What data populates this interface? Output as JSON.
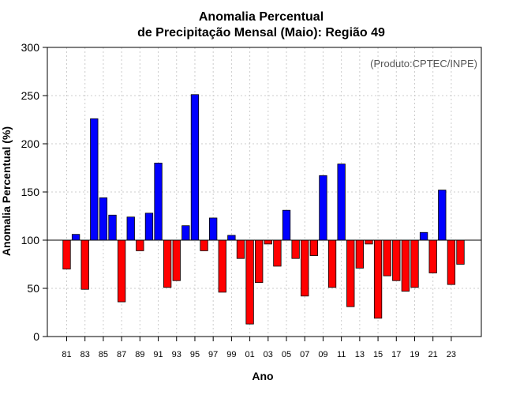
{
  "chart_data": {
    "type": "bar",
    "title_line1": "Anomalia Percentual",
    "title_line2": "de Precipitação Mensal (Maio): Região 49",
    "ylabel": "Anomalia Percentual (%)",
    "xlabel": "Ano",
    "credit": "(Produto:CPTEC/INPE)",
    "ylim": [
      0,
      300
    ],
    "yticks": [
      0,
      50,
      100,
      150,
      200,
      250,
      300
    ],
    "baseline": 100,
    "grid": true,
    "colors": {
      "above": "#0000ff",
      "below": "#ff0000",
      "border": "#000000",
      "grid": "#cccccc"
    },
    "categories": [
      "81",
      "82",
      "83",
      "84",
      "85",
      "86",
      "87",
      "88",
      "89",
      "90",
      "91",
      "92",
      "93",
      "94",
      "95",
      "96",
      "97",
      "98",
      "99",
      "00",
      "01",
      "02",
      "03",
      "04",
      "05",
      "06",
      "07",
      "08",
      "09",
      "10",
      "11",
      "12",
      "13",
      "14",
      "15",
      "16",
      "17",
      "18",
      "19",
      "20",
      "21",
      "22",
      "23",
      "24"
    ],
    "tick_labels": [
      "81",
      "83",
      "85",
      "87",
      "89",
      "91",
      "93",
      "95",
      "97",
      "99",
      "01",
      "03",
      "05",
      "07",
      "09",
      "11",
      "13",
      "15",
      "17",
      "19",
      "21",
      "23"
    ],
    "values": [
      70,
      106,
      49,
      226,
      144,
      126,
      36,
      124,
      89,
      128,
      180,
      51,
      58,
      115,
      251,
      89,
      123,
      46,
      105,
      81,
      13,
      56,
      96,
      73,
      131,
      81,
      42,
      84,
      167,
      51,
      179,
      31,
      71,
      96,
      19,
      63,
      58,
      47,
      51,
      108,
      66,
      152,
      54,
      75
    ]
  }
}
